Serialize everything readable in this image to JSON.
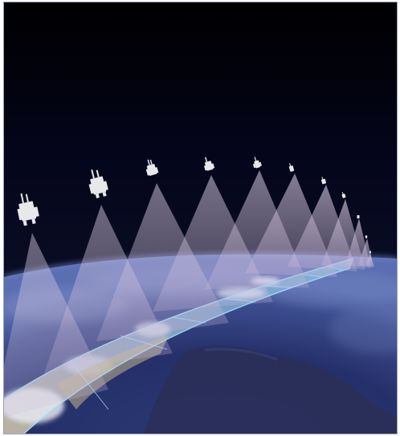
{
  "image": {
    "subject": "satellite-scan-illustration",
    "colors": {
      "space_top": "#000000",
      "space_mid": "#0a0c24",
      "space_horizon": "#16194a",
      "earth_dark": "#1c2247",
      "earth_mid": "#2a3568",
      "earth_haze": "#465b9c",
      "cloud": "#d8dce8",
      "land_tan": "#b7a98a",
      "swath_tint": "#7fb4d8",
      "swath_edge": "#9ee0ff",
      "beam_color": "#d9c9e3",
      "satellite_color": "#e8e8ea"
    }
  }
}
